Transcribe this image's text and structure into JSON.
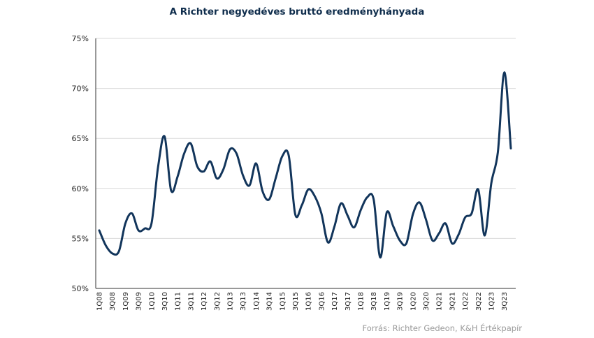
{
  "chart_data": {
    "type": "line",
    "title": "A Richter negyedéves bruttó eredményhányada",
    "source": "Forrás: Richter Gedeon, K&H Értékpapír",
    "xlabel": "",
    "ylabel": "",
    "ylim": [
      0.5,
      0.75
    ],
    "yticks": [
      0.5,
      0.55,
      0.6,
      0.65,
      0.7,
      0.75
    ],
    "ytick_labels": [
      "50%",
      "55%",
      "60%",
      "65%",
      "70%",
      "75%"
    ],
    "grid": "horizontal",
    "line_color": "#12355b",
    "x_tick_labels": [
      "1Q08",
      "3Q08",
      "1Q09",
      "3Q09",
      "1Q10",
      "3Q10",
      "1Q11",
      "3Q11",
      "1Q12",
      "3Q12",
      "1Q13",
      "3Q13",
      "1Q14",
      "3Q14",
      "1Q15",
      "3Q15",
      "1Q16",
      "3Q16",
      "1Q17",
      "3Q17",
      "1Q18",
      "3Q18",
      "1Q19",
      "3Q19",
      "1Q20",
      "3Q20",
      "1Q21",
      "3Q21",
      "1Q22",
      "3Q22",
      "1Q23",
      "3Q23"
    ],
    "x": [
      "1Q08",
      "2Q08",
      "3Q08",
      "4Q08",
      "1Q09",
      "2Q09",
      "3Q09",
      "4Q09",
      "1Q10",
      "2Q10",
      "3Q10",
      "4Q10",
      "1Q11",
      "2Q11",
      "3Q11",
      "4Q11",
      "1Q12",
      "2Q12",
      "3Q12",
      "4Q12",
      "1Q13",
      "2Q13",
      "3Q13",
      "4Q13",
      "1Q14",
      "2Q14",
      "3Q14",
      "4Q14",
      "1Q15",
      "2Q15",
      "3Q15",
      "4Q15",
      "1Q16",
      "2Q16",
      "3Q16",
      "4Q16",
      "1Q17",
      "2Q17",
      "3Q17",
      "4Q17",
      "1Q18",
      "2Q18",
      "3Q18",
      "4Q18",
      "1Q19",
      "2Q19",
      "3Q19",
      "4Q19",
      "1Q20",
      "2Q20",
      "3Q20",
      "4Q20",
      "1Q21",
      "2Q21",
      "3Q21",
      "4Q21",
      "1Q22",
      "2Q22",
      "3Q22",
      "4Q22",
      "1Q23",
      "2Q23",
      "3Q23",
      "4Q23"
    ],
    "series": [
      {
        "values": [
          0.558,
          0.543,
          0.535,
          0.537,
          0.565,
          0.575,
          0.558,
          0.56,
          0.565,
          0.621,
          0.652,
          0.598,
          0.612,
          0.635,
          0.645,
          0.622,
          0.617,
          0.627,
          0.61,
          0.619,
          0.639,
          0.635,
          0.613,
          0.603,
          0.625,
          0.597,
          0.589,
          0.61,
          0.632,
          0.633,
          0.574,
          0.583,
          0.599,
          0.592,
          0.575,
          0.546,
          0.562,
          0.585,
          0.573,
          0.561,
          0.578,
          0.591,
          0.589,
          0.531,
          0.576,
          0.562,
          0.548,
          0.545,
          0.574,
          0.586,
          0.569,
          0.548,
          0.555,
          0.565,
          0.545,
          0.554,
          0.571,
          0.575,
          0.599,
          0.553,
          0.605,
          0.636,
          0.716,
          0.64
        ]
      }
    ]
  }
}
